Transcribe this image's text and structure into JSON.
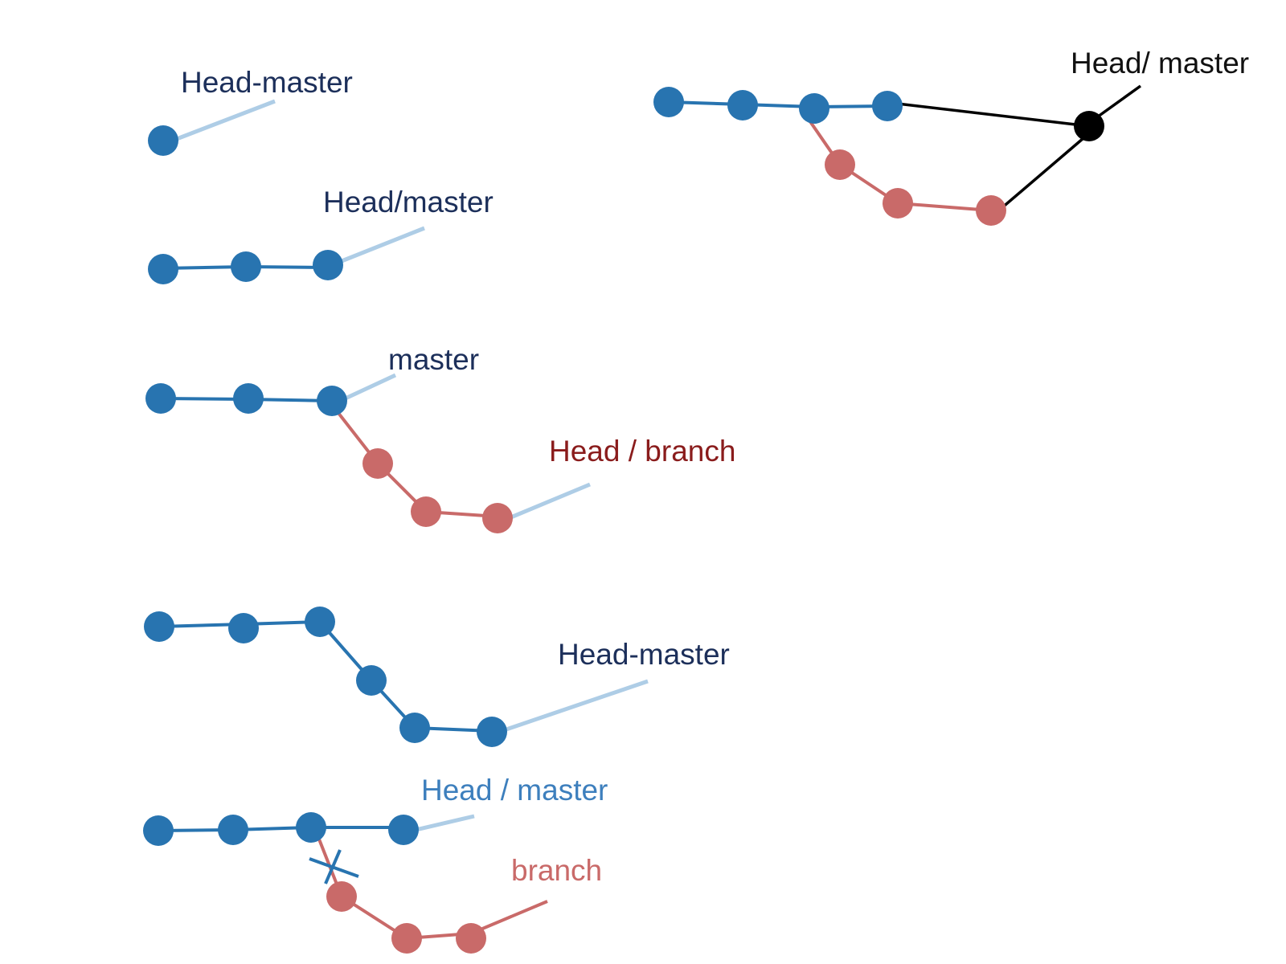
{
  "colors": {
    "commit_blue": "#2874b0",
    "commit_red": "#c96a69",
    "pointer_light_blue": "#aecde6",
    "merge_black": "#000000",
    "label_navy": "#1c2f5a",
    "label_dark_red": "#8a1c1c",
    "label_mid_blue": "#3d7fbd",
    "label_salmon": "#c96a69"
  },
  "diagrams": {
    "initial_commit": {
      "label": "Head-master",
      "commits": 1
    },
    "three_commits": {
      "label": "Head/master",
      "commits": 3
    },
    "branch_created": {
      "master_label": "master",
      "branch_label": "Head / branch",
      "master_commits": 3,
      "branch_commits": 3
    },
    "fast_forward": {
      "label": "Head-master",
      "commits": 6
    },
    "diverged": {
      "master_label": "Head / master",
      "branch_label": "branch",
      "master_commits": 4,
      "branch_commits": 3,
      "crossed_link": true
    },
    "merged": {
      "label": "Head/ master",
      "master_commits": 4,
      "branch_commits": 3,
      "merge_commits": 1
    }
  }
}
